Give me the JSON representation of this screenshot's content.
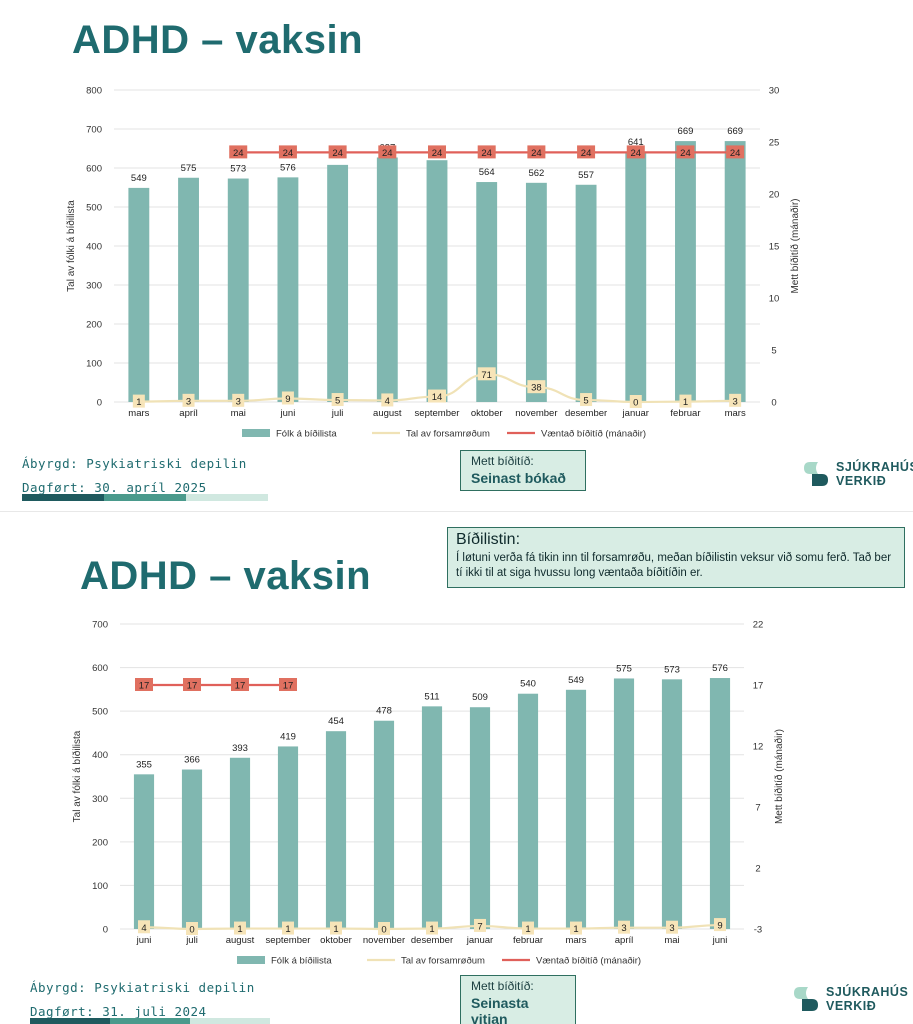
{
  "slide1": {
    "title": "ADHD – vaksin",
    "owner": "Ábyrgd: Psykiatriski depilin",
    "date": "Dagført: 30. apríl 2025",
    "wait_label": "Mett bíðitíð:",
    "wait_value": "Seinast bókað",
    "logo_line1": "SJÚKRAHÚS",
    "logo_line2": "VERKIÐ"
  },
  "slide2": {
    "title": "ADHD – vaksin",
    "owner": "Ábyrgd: Psykiatriski depilin",
    "date": "Dagført: 31. juli 2024",
    "wait_label": "Mett bíðitíð:",
    "wait_value": "Seinasta vitjan",
    "logo_line1": "SJÚKRAHÚS",
    "logo_line2": "VERKIÐ",
    "note_title": "Bíðilistin:",
    "note_body": "Í løtuni verða fá tikin inn til forsamrøðu, meðan bíðilistin veksur við somu ferð. Tað ber tí ikki til at siga hvussu long væntaða bíðitíðin er."
  },
  "colors": {
    "bar": "#80b7b0",
    "consult_line": "#f0e2b6",
    "expected_line": "#e0605a",
    "label_box": "#f6e4b8",
    "expected_box": "#e07060",
    "title": "#1f6b6f"
  },
  "chart_data": [
    {
      "type": "bar",
      "categories": [
        "mars",
        "apríl",
        "mai",
        "juni",
        "juli",
        "august",
        "september",
        "oktober",
        "november",
        "desember",
        "januar",
        "februar",
        "mars"
      ],
      "series": [
        {
          "name": "Fólk á bíðilista",
          "type": "bar",
          "axis": "left",
          "values": [
            549,
            575,
            573,
            576,
            608,
            627,
            620,
            564,
            562,
            557,
            641,
            669,
            669
          ]
        },
        {
          "name": "Tal av forsamrøðum",
          "type": "line",
          "axis": "left",
          "values": [
            1,
            3,
            3,
            9,
            5,
            4,
            14,
            71,
            38,
            5,
            0,
            1,
            3
          ]
        },
        {
          "name": "Væntað bíðitíð (mánaðir)",
          "type": "line",
          "axis": "right",
          "values": [
            null,
            null,
            24,
            24,
            24,
            24,
            24,
            24,
            24,
            24,
            24,
            24,
            24
          ]
        }
      ],
      "ylabel": "Tal av fólki á bíðilista",
      "y2label": "Mett bíðitíð (mánaðir)",
      "ylim": [
        0,
        800
      ],
      "y2lim": [
        0,
        30
      ],
      "yticks": [
        "0",
        "100",
        "200",
        "300",
        "400",
        "500",
        "600",
        "700",
        "800"
      ],
      "y2ticks": [
        "0",
        "5",
        "10",
        "15",
        "20",
        "25",
        "30"
      ],
      "legend": "bottom",
      "grid": true
    },
    {
      "type": "bar",
      "categories": [
        "juni",
        "juli",
        "august",
        "september",
        "oktober",
        "november",
        "desember",
        "januar",
        "februar",
        "mars",
        "apríl",
        "mai",
        "juni"
      ],
      "series": [
        {
          "name": "Fólk á bíðilista",
          "type": "bar",
          "axis": "left",
          "values": [
            355,
            366,
            393,
            419,
            454,
            478,
            511,
            509,
            540,
            549,
            575,
            573,
            576
          ]
        },
        {
          "name": "Tal av forsamrøðum",
          "type": "line",
          "axis": "left",
          "values": [
            4,
            0,
            1,
            1,
            1,
            0,
            1,
            7,
            1,
            1,
            3,
            3,
            9
          ]
        },
        {
          "name": "Væntað bíðitíð (mánaðir)",
          "type": "line",
          "axis": "right",
          "values": [
            17,
            17,
            17,
            17,
            null,
            null,
            null,
            null,
            null,
            null,
            null,
            null,
            null
          ]
        }
      ],
      "ylabel": "Tal av fólki á bíðilista",
      "y2label": "Mett bíðitíð (mánaðir)",
      "ylim": [
        0,
        700
      ],
      "y2lim": [
        -3,
        22
      ],
      "yticks": [
        "0",
        "100",
        "200",
        "300",
        "400",
        "500",
        "600",
        "700"
      ],
      "y2ticks": [
        "-3",
        "2",
        "7",
        "12",
        "17",
        "22"
      ],
      "legend": "bottom",
      "grid": true
    }
  ]
}
